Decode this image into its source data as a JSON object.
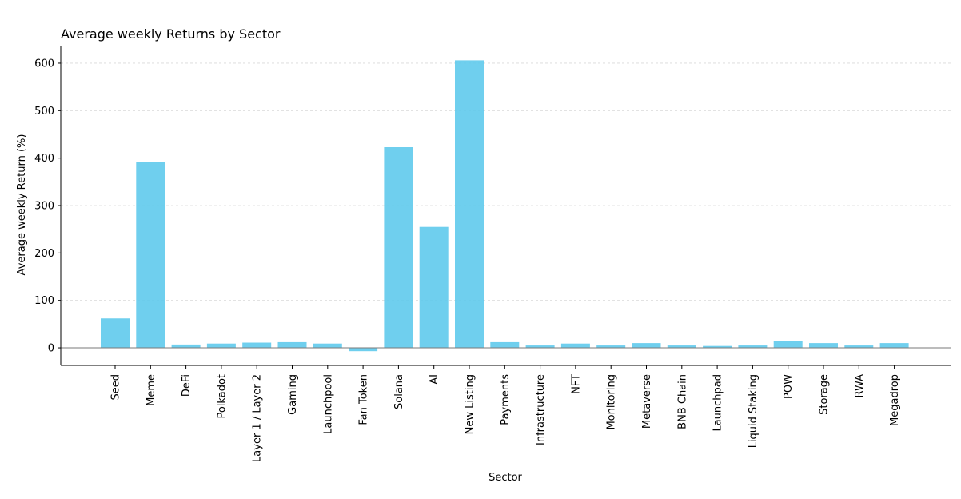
{
  "chart_data": {
    "type": "bar",
    "title": "Average weekly Returns by Sector",
    "xlabel": "Sector",
    "ylabel": "Average weekly Return (%)",
    "ylim": [
      -37,
      637
    ],
    "yticks": [
      0,
      100,
      200,
      300,
      400,
      500,
      600
    ],
    "grid": "horizontal dashed",
    "bar_color": "#5bc8ec",
    "categories": [
      "Seed",
      "Meme",
      "DeFi",
      "Polkadot",
      "Layer 1 / Layer 2",
      "Gaming",
      "Launchpool",
      "Fan Token",
      "Solana",
      "AI",
      "New Listing",
      "Payments",
      "Infrastructure",
      "NFT",
      "Monitoring",
      "Metaverse",
      "BNB Chain",
      "Launchpad",
      "Liquid Staking",
      "POW",
      "Storage",
      "RWA",
      "Megadrop"
    ],
    "values": [
      62,
      392,
      7,
      9,
      11,
      12,
      9,
      -7,
      423,
      255,
      606,
      12,
      5,
      9,
      5,
      10,
      5,
      4,
      5,
      14,
      10,
      5,
      10
    ]
  }
}
